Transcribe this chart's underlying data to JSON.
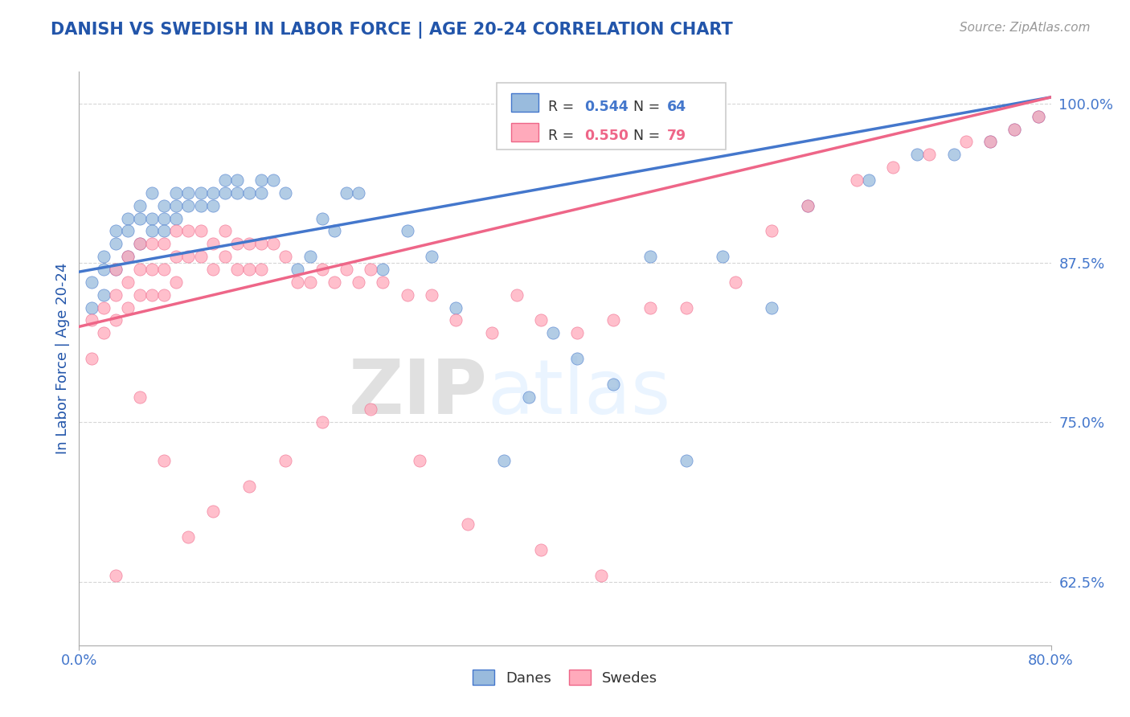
{
  "title": "DANISH VS SWEDISH IN LABOR FORCE | AGE 20-24 CORRELATION CHART",
  "source_text": "Source: ZipAtlas.com",
  "ylabel": "In Labor Force | Age 20-24",
  "xlim": [
    0.0,
    0.8
  ],
  "ylim": [
    0.575,
    1.025
  ],
  "ytick_positions": [
    0.625,
    0.75,
    0.875,
    1.0
  ],
  "ytick_labels": [
    "62.5%",
    "75.0%",
    "87.5%",
    "100.0%"
  ],
  "blue_color": "#99BBDD",
  "pink_color": "#FFAABB",
  "blue_line_color": "#4477CC",
  "pink_line_color": "#EE6688",
  "legend_label_blue": "Danes",
  "legend_label_pink": "Swedes",
  "title_color": "#2255AA",
  "axis_label_color": "#2255AA",
  "tick_label_color": "#4477CC",
  "watermark_color": "#DDEEFF",
  "blue_dots_x": [
    0.01,
    0.01,
    0.02,
    0.02,
    0.02,
    0.03,
    0.03,
    0.03,
    0.04,
    0.04,
    0.04,
    0.05,
    0.05,
    0.05,
    0.06,
    0.06,
    0.06,
    0.07,
    0.07,
    0.07,
    0.08,
    0.08,
    0.08,
    0.09,
    0.09,
    0.1,
    0.1,
    0.11,
    0.11,
    0.12,
    0.12,
    0.13,
    0.13,
    0.14,
    0.15,
    0.15,
    0.16,
    0.17,
    0.18,
    0.19,
    0.2,
    0.21,
    0.22,
    0.23,
    0.25,
    0.27,
    0.29,
    0.31,
    0.35,
    0.37,
    0.39,
    0.41,
    0.44,
    0.47,
    0.5,
    0.53,
    0.57,
    0.6,
    0.65,
    0.69,
    0.72,
    0.75,
    0.77,
    0.79
  ],
  "blue_dots_y": [
    0.86,
    0.84,
    0.88,
    0.87,
    0.85,
    0.9,
    0.89,
    0.87,
    0.91,
    0.9,
    0.88,
    0.92,
    0.91,
    0.89,
    0.93,
    0.91,
    0.9,
    0.92,
    0.91,
    0.9,
    0.93,
    0.92,
    0.91,
    0.93,
    0.92,
    0.93,
    0.92,
    0.93,
    0.92,
    0.94,
    0.93,
    0.94,
    0.93,
    0.93,
    0.94,
    0.93,
    0.94,
    0.93,
    0.87,
    0.88,
    0.91,
    0.9,
    0.93,
    0.93,
    0.87,
    0.9,
    0.88,
    0.84,
    0.72,
    0.77,
    0.82,
    0.8,
    0.78,
    0.88,
    0.72,
    0.88,
    0.84,
    0.92,
    0.94,
    0.96,
    0.96,
    0.97,
    0.98,
    0.99
  ],
  "pink_dots_x": [
    0.01,
    0.01,
    0.02,
    0.02,
    0.03,
    0.03,
    0.03,
    0.04,
    0.04,
    0.04,
    0.05,
    0.05,
    0.05,
    0.06,
    0.06,
    0.06,
    0.07,
    0.07,
    0.07,
    0.08,
    0.08,
    0.08,
    0.09,
    0.09,
    0.1,
    0.1,
    0.11,
    0.11,
    0.12,
    0.12,
    0.13,
    0.13,
    0.14,
    0.14,
    0.15,
    0.15,
    0.16,
    0.17,
    0.18,
    0.19,
    0.2,
    0.21,
    0.22,
    0.23,
    0.24,
    0.25,
    0.27,
    0.29,
    0.31,
    0.34,
    0.36,
    0.38,
    0.41,
    0.44,
    0.47,
    0.5,
    0.54,
    0.57,
    0.6,
    0.64,
    0.67,
    0.7,
    0.73,
    0.75,
    0.77,
    0.79,
    0.43,
    0.38,
    0.32,
    0.28,
    0.24,
    0.2,
    0.17,
    0.14,
    0.11,
    0.09,
    0.07,
    0.05,
    0.03
  ],
  "pink_dots_y": [
    0.83,
    0.8,
    0.84,
    0.82,
    0.87,
    0.85,
    0.83,
    0.88,
    0.86,
    0.84,
    0.89,
    0.87,
    0.85,
    0.89,
    0.87,
    0.85,
    0.89,
    0.87,
    0.85,
    0.9,
    0.88,
    0.86,
    0.9,
    0.88,
    0.9,
    0.88,
    0.89,
    0.87,
    0.9,
    0.88,
    0.89,
    0.87,
    0.89,
    0.87,
    0.89,
    0.87,
    0.89,
    0.88,
    0.86,
    0.86,
    0.87,
    0.86,
    0.87,
    0.86,
    0.87,
    0.86,
    0.85,
    0.85,
    0.83,
    0.82,
    0.85,
    0.83,
    0.82,
    0.83,
    0.84,
    0.84,
    0.86,
    0.9,
    0.92,
    0.94,
    0.95,
    0.96,
    0.97,
    0.97,
    0.98,
    0.99,
    0.63,
    0.65,
    0.67,
    0.72,
    0.76,
    0.75,
    0.72,
    0.7,
    0.68,
    0.66,
    0.72,
    0.77,
    0.63
  ],
  "blue_line_x0": 0.0,
  "blue_line_y0": 0.868,
  "blue_line_x1": 0.8,
  "blue_line_y1": 1.005,
  "pink_line_x0": 0.0,
  "pink_line_y0": 0.825,
  "pink_line_x1": 0.8,
  "pink_line_y1": 1.005
}
